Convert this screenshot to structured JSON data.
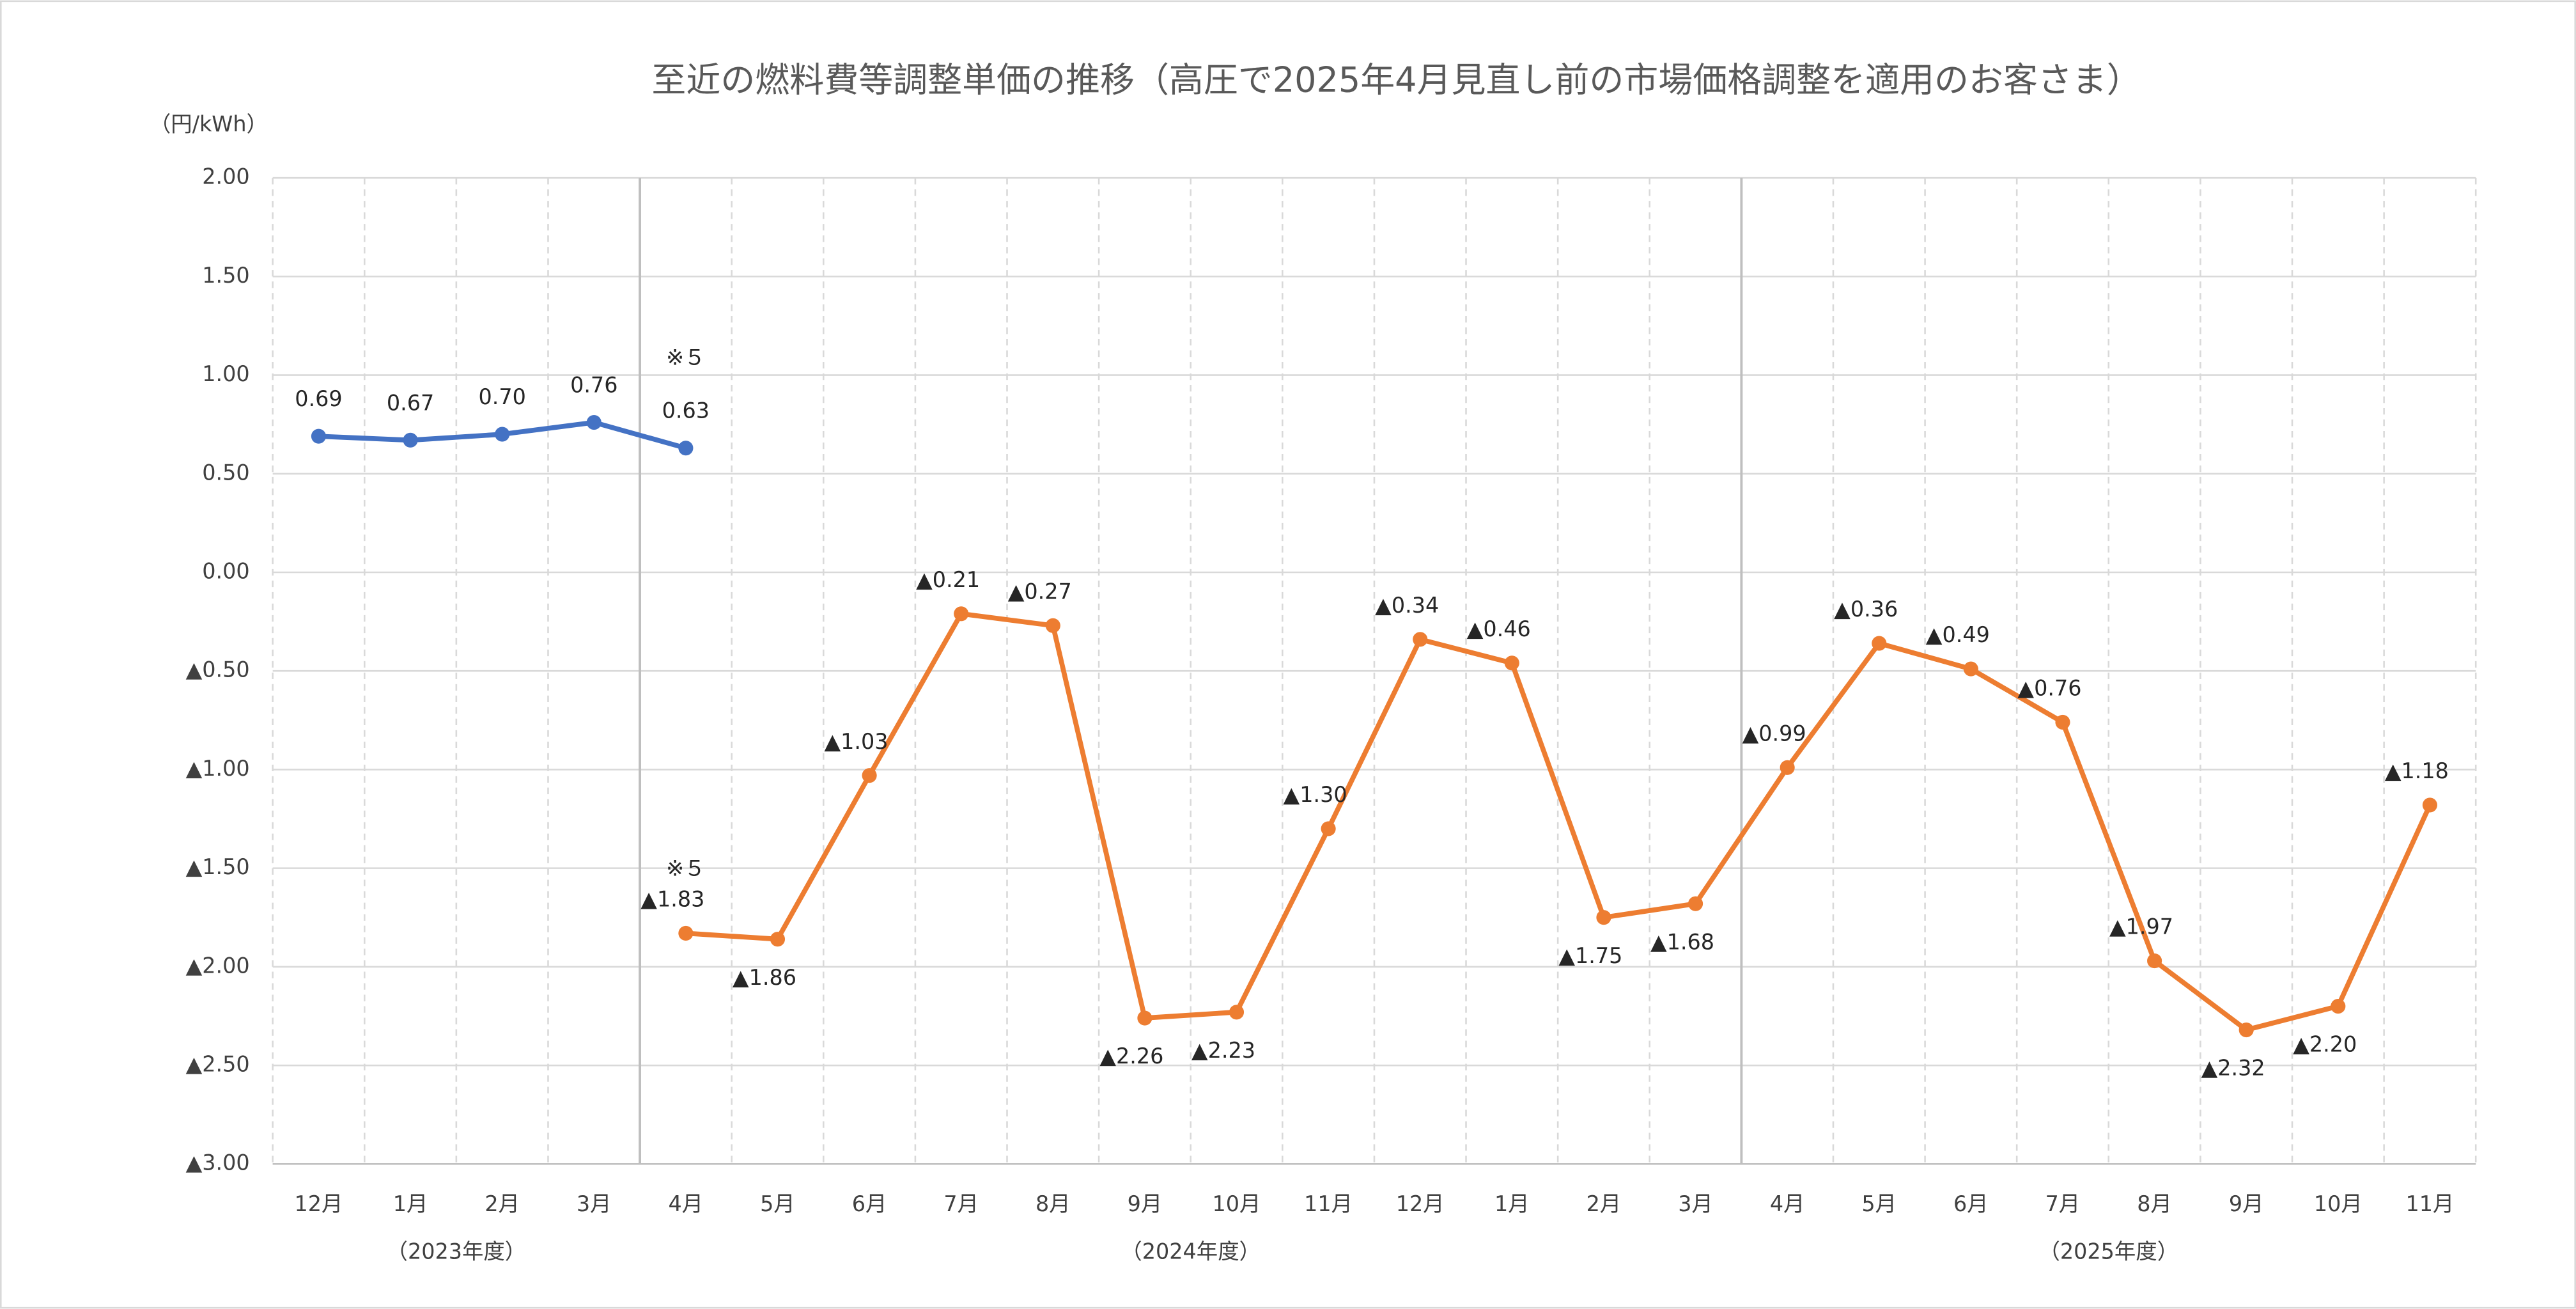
{
  "chart_data": {
    "type": "line",
    "title": "至近の燃料費等調整単価の推移（高圧で2025年4月見直し前の市場価格調整を適用のお客さま）",
    "y_axis_label": "（円/kWh）",
    "categories": [
      "12月",
      "1月",
      "2月",
      "3月",
      "4月",
      "5月",
      "6月",
      "7月",
      "8月",
      "9月",
      "10月",
      "11月",
      "12月",
      "1月",
      "2月",
      "3月",
      "4月",
      "5月",
      "6月",
      "7月",
      "8月",
      "9月",
      "10月",
      "11月"
    ],
    "group_labels": [
      "（2023年度）",
      "（2024年度）",
      "（2025年度）"
    ],
    "annotations": [
      "※５",
      "※５"
    ],
    "series": [
      {
        "color": "#4472c4",
        "values": [
          0.69,
          0.67,
          0.7,
          0.76,
          0.63,
          null,
          null,
          null,
          null,
          null,
          null,
          null,
          null,
          null,
          null,
          null,
          null,
          null,
          null,
          null,
          null,
          null,
          null,
          null
        ],
        "value_labels": [
          "0.69",
          "0.67",
          "0.70",
          "0.76",
          "0.63",
          null,
          null,
          null,
          null,
          null,
          null,
          null,
          null,
          null,
          null,
          null,
          null,
          null,
          null,
          null,
          null,
          null,
          null,
          null
        ]
      },
      {
        "color": "#ed7d31",
        "values": [
          null,
          null,
          null,
          null,
          -1.83,
          -1.86,
          -1.03,
          -0.21,
          -0.27,
          -2.26,
          -2.23,
          -1.3,
          -0.34,
          -0.46,
          -1.75,
          -1.68,
          -0.99,
          -0.36,
          -0.49,
          -0.76,
          -1.97,
          -2.32,
          -2.2,
          -1.18
        ],
        "value_labels": [
          null,
          null,
          null,
          null,
          "▲1.83",
          "▲1.86",
          "▲1.03",
          "▲0.21",
          "▲0.27",
          "▲2.26",
          "▲2.23",
          "▲1.30",
          "▲0.34",
          "▲0.46",
          "▲1.75",
          "▲1.68",
          "▲0.99",
          "▲0.36",
          "▲0.49",
          "▲0.76",
          "▲1.97",
          "▲2.32",
          "▲2.20",
          "▲1.18"
        ]
      }
    ],
    "ylim": [
      -3,
      2
    ],
    "yticks": [
      {
        "value": 2,
        "label": "2.00"
      },
      {
        "value": 1.5,
        "label": "1.50"
      },
      {
        "value": 1,
        "label": "1.00"
      },
      {
        "value": 0.5,
        "label": "0.50"
      },
      {
        "value": 0,
        "label": "0.00"
      },
      {
        "value": -0.5,
        "label": "▲0.50"
      },
      {
        "value": -1,
        "label": "▲1.00"
      },
      {
        "value": -1.5,
        "label": "▲1.50"
      },
      {
        "value": -2,
        "label": "▲2.00"
      },
      {
        "value": -2.5,
        "label": "▲2.50"
      },
      {
        "value": -3,
        "label": "▲3.00"
      }
    ],
    "grid": true
  }
}
